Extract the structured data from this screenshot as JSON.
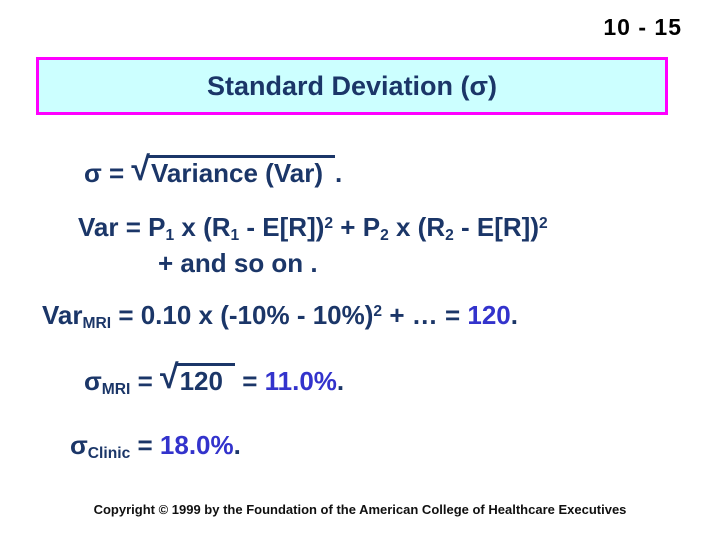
{
  "slide_number": "10 - 15",
  "title": "Standard Deviation (σ)",
  "radical_sign": "√",
  "eq1": {
    "lhs": "σ = ",
    "radicand": "Variance (Var)",
    "tail": "."
  },
  "eq2": {
    "t1": "Var = P",
    "s1": "1",
    "t2": " x (R",
    "s2": "1",
    "t3": " - E[R])",
    "p1": "2",
    "t4": " + P",
    "s3": "2",
    "t5": " x (R",
    "s4": "2",
    "t6": " - E[R])",
    "p2": "2",
    "cont": "+ and so on ."
  },
  "eq3": {
    "t1": "Var",
    "s1": "MRI",
    "t2": " = 0.10 x (-10% - 10%)",
    "p1": "2",
    "t3": " + … = ",
    "v1": "120",
    "t4": "."
  },
  "eq4": {
    "t1": "σ",
    "s1": "MRI",
    "t2": " = ",
    "radicand": "120",
    "t3": " = ",
    "v1": "11.0%",
    "t4": "."
  },
  "eq5": {
    "t1": "σ",
    "s1": "Clinic",
    "t2": " = ",
    "v1": "18.0%",
    "t3": "."
  },
  "copyright": "Copyright © 1999 by the Foundation of the American College of Healthcare Executives",
  "colors": {
    "title_text": "#1b3668",
    "title_background": "#ccffff",
    "title_border": "#ff00ff",
    "body_text": "#1b3668",
    "accent_value": "#3333cc",
    "slide_number_text": "#000000"
  }
}
